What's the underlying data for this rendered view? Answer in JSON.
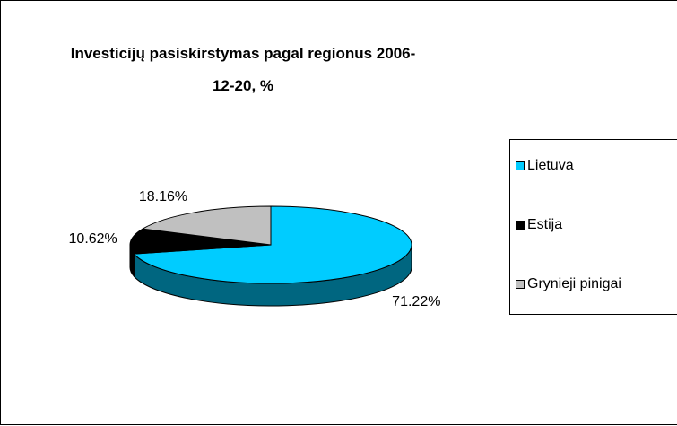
{
  "chart_data": {
    "type": "pie3d",
    "title": "Investicijų pasiskirstymas pagal regionus 2006-12-20, %",
    "categories": [
      "Lietuva",
      "Estija",
      "Grynieji pinigai"
    ],
    "values": [
      71.22,
      10.62,
      18.16
    ],
    "value_labels": [
      "71.22%",
      "10.62%",
      "18.16%"
    ],
    "colors": [
      "#00ccff",
      "#000000",
      "#c0c0c0"
    ],
    "side_colors": [
      "#006680",
      "#000000",
      "#808080"
    ],
    "legend": "right"
  }
}
